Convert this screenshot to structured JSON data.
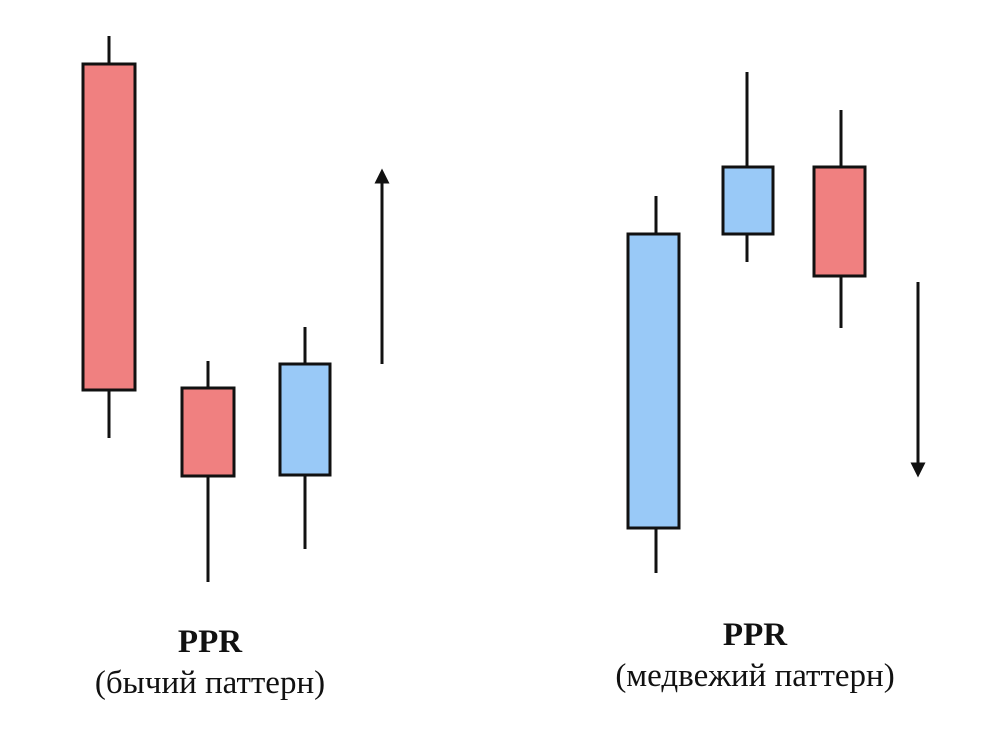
{
  "colors": {
    "bearish_fill": "#f08080",
    "bullish_fill": "#99c9f7",
    "outline": "#111111",
    "background": "#ffffff"
  },
  "patterns": [
    {
      "title": "PPR",
      "subtitle": "(бычий паттерн)",
      "arrow": "up",
      "candles": [
        {
          "color": "bearish"
        },
        {
          "color": "bearish"
        },
        {
          "color": "bullish"
        }
      ]
    },
    {
      "title": "PPR",
      "subtitle": "(медвежий паттерн)",
      "arrow": "down",
      "candles": [
        {
          "color": "bullish"
        },
        {
          "color": "bullish"
        },
        {
          "color": "bearish"
        }
      ]
    }
  ]
}
